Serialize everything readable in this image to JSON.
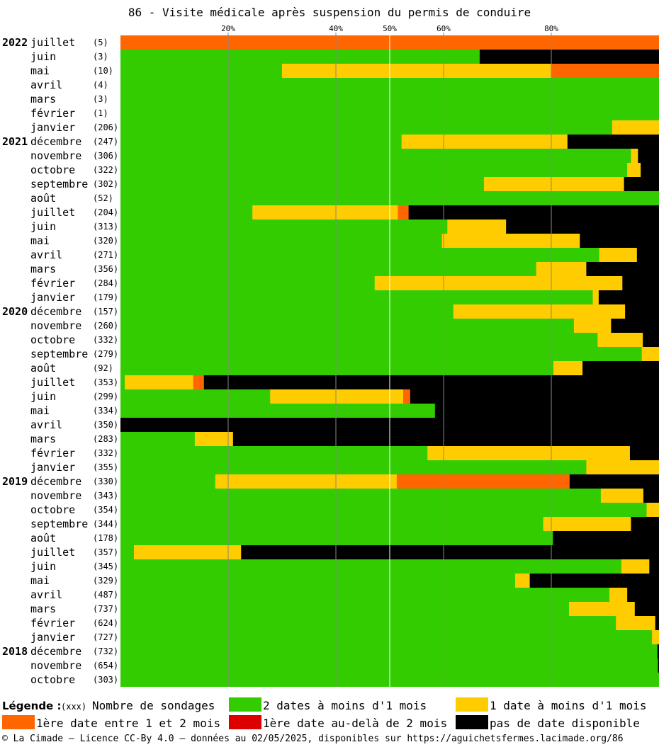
{
  "title": "86 - Visite médicale après suspension du permis de conduire",
  "colors": {
    "green": "#33cc00",
    "yellow": "#ffcc00",
    "orange": "#ff6600",
    "red": "#dd0000",
    "black": "#000000"
  },
  "legend": {
    "title": "Légende :",
    "count_hint": "(xxx)",
    "count_label": "Nombre de sondages",
    "items": [
      {
        "key": "green",
        "label": "2 dates à moins d'1 mois"
      },
      {
        "key": "yellow",
        "label": "1 date à moins d'1 mois"
      },
      {
        "key": "orange",
        "label": "1ère date entre 1 et 2 mois"
      },
      {
        "key": "red",
        "label": "1ère date au-delà de 2 mois"
      },
      {
        "key": "black",
        "label": "pas de date disponible"
      }
    ]
  },
  "footer": "© La Cimade – Licence CC-By 4.0 – données au 02/05/2025, disponibles sur https://aguichetsfermes.lacimade.org/86",
  "chart_data": {
    "type": "bar",
    "orientation": "horizontal-stacked-percent",
    "xlim": [
      0,
      100
    ],
    "ticks": [
      20,
      40,
      50,
      60,
      80
    ],
    "tick_labels": [
      "20%",
      "40%",
      "50%",
      "60%",
      "80%"
    ],
    "series_keys": [
      "green",
      "yellow",
      "orange",
      "red",
      "black"
    ],
    "rows": [
      {
        "year": "2022",
        "month": "juillet",
        "count": "(5)",
        "values": [
          0,
          0,
          100,
          0,
          0
        ]
      },
      {
        "year": "",
        "month": "juin",
        "count": "(3)",
        "values": [
          66.7,
          0,
          0,
          0,
          33.3
        ]
      },
      {
        "year": "",
        "month": "mai",
        "count": "(10)",
        "values": [
          30,
          50,
          20,
          0,
          0
        ]
      },
      {
        "year": "",
        "month": "avril",
        "count": "(4)",
        "values": [
          100,
          0,
          0,
          0,
          0
        ]
      },
      {
        "year": "",
        "month": "mars",
        "count": "(3)",
        "values": [
          100,
          0,
          0,
          0,
          0
        ]
      },
      {
        "year": "",
        "month": "février",
        "count": "(1)",
        "values": [
          100,
          0,
          0,
          0,
          0
        ]
      },
      {
        "year": "",
        "month": "janvier",
        "count": "(206)",
        "values": [
          91.3,
          8.7,
          0,
          0,
          0
        ]
      },
      {
        "year": "2021",
        "month": "décembre",
        "count": "(247)",
        "values": [
          52.2,
          30.8,
          0,
          0,
          17
        ]
      },
      {
        "year": "",
        "month": "novembre",
        "count": "(306)",
        "values": [
          94.8,
          1.3,
          0,
          0,
          3.9
        ]
      },
      {
        "year": "",
        "month": "octobre",
        "count": "(322)",
        "values": [
          94.1,
          2.5,
          0,
          0,
          3.4
        ]
      },
      {
        "year": "",
        "month": "septembre",
        "count": "(302)",
        "values": [
          67.5,
          26,
          0,
          0,
          6.5
        ]
      },
      {
        "year": "",
        "month": "août",
        "count": "(52)",
        "values": [
          100,
          0,
          0,
          0,
          0
        ]
      },
      {
        "year": "",
        "month": "juillet",
        "count": "(204)",
        "values": [
          24.5,
          27,
          2,
          0,
          46.5
        ]
      },
      {
        "year": "",
        "month": "juin",
        "count": "(313)",
        "values": [
          60.7,
          10.9,
          0,
          0,
          28.4
        ]
      },
      {
        "year": "",
        "month": "mai",
        "count": "(320)",
        "values": [
          59.7,
          25.6,
          0,
          0,
          14.7
        ]
      },
      {
        "year": "",
        "month": "avril",
        "count": "(271)",
        "values": [
          88.9,
          7,
          0,
          0,
          4.1
        ]
      },
      {
        "year": "",
        "month": "mars",
        "count": "(356)",
        "values": [
          77.2,
          9.3,
          0,
          0,
          13.5
        ]
      },
      {
        "year": "",
        "month": "février",
        "count": "(284)",
        "values": [
          47.2,
          46,
          0,
          0,
          6.8
        ]
      },
      {
        "year": "",
        "month": "janvier",
        "count": "(179)",
        "values": [
          87.7,
          1.1,
          0,
          0,
          11.2
        ]
      },
      {
        "year": "2020",
        "month": "décembre",
        "count": "(157)",
        "values": [
          61.8,
          31.9,
          0,
          0,
          6.3
        ]
      },
      {
        "year": "",
        "month": "novembre",
        "count": "(260)",
        "values": [
          84.2,
          6.9,
          0,
          0,
          8.9
        ]
      },
      {
        "year": "",
        "month": "octobre",
        "count": "(332)",
        "values": [
          88.6,
          8.4,
          0,
          0,
          3
        ]
      },
      {
        "year": "",
        "month": "septembre",
        "count": "(279)",
        "values": [
          96.8,
          3.2,
          0,
          0,
          0
        ]
      },
      {
        "year": "",
        "month": "août",
        "count": "(92)",
        "values": [
          80.4,
          5.4,
          0,
          0,
          14.2
        ]
      },
      {
        "year": "",
        "month": "juillet",
        "count": "(353)",
        "values": [
          0.8,
          12.7,
          2,
          0,
          84.5
        ]
      },
      {
        "year": "",
        "month": "juin",
        "count": "(299)",
        "values": [
          27.8,
          24.7,
          1.3,
          0,
          46.2
        ]
      },
      {
        "year": "",
        "month": "mai",
        "count": "(334)",
        "values": [
          58.4,
          0,
          0,
          0,
          41.6
        ]
      },
      {
        "year": "",
        "month": "avril",
        "count": "(350)",
        "values": [
          0,
          0,
          0,
          0,
          100
        ]
      },
      {
        "year": "",
        "month": "mars",
        "count": "(283)",
        "values": [
          13.8,
          7.1,
          0,
          0,
          79.1
        ]
      },
      {
        "year": "",
        "month": "février",
        "count": "(332)",
        "values": [
          57,
          37.6,
          0,
          0,
          5.4
        ]
      },
      {
        "year": "",
        "month": "janvier",
        "count": "(355)",
        "values": [
          86.5,
          13.5,
          0,
          0,
          0
        ]
      },
      {
        "year": "2019",
        "month": "décembre",
        "count": "(330)",
        "values": [
          17.6,
          33.7,
          32.1,
          0,
          16.6
        ]
      },
      {
        "year": "",
        "month": "novembre",
        "count": "(343)",
        "values": [
          89.2,
          7.9,
          0,
          0,
          2.9
        ]
      },
      {
        "year": "",
        "month": "octobre",
        "count": "(354)",
        "values": [
          97.7,
          2.3,
          0,
          0,
          0
        ]
      },
      {
        "year": "",
        "month": "septembre",
        "count": "(344)",
        "values": [
          78.5,
          16.3,
          0,
          0,
          5.2
        ]
      },
      {
        "year": "",
        "month": "août",
        "count": "(178)",
        "values": [
          80.3,
          0,
          0,
          0,
          19.7
        ]
      },
      {
        "year": "",
        "month": "juillet",
        "count": "(357)",
        "values": [
          2.5,
          19.9,
          0,
          0,
          77.6
        ]
      },
      {
        "year": "",
        "month": "juin",
        "count": "(345)",
        "values": [
          93,
          5.2,
          0,
          0,
          1.8
        ]
      },
      {
        "year": "",
        "month": "mai",
        "count": "(329)",
        "values": [
          73.3,
          2.7,
          0,
          0,
          24
        ]
      },
      {
        "year": "",
        "month": "avril",
        "count": "(487)",
        "values": [
          90.8,
          3.3,
          0,
          0,
          5.9
        ]
      },
      {
        "year": "",
        "month": "mars",
        "count": "(737)",
        "values": [
          83.3,
          12.2,
          0,
          0,
          4.5
        ]
      },
      {
        "year": "",
        "month": "février",
        "count": "(624)",
        "values": [
          92,
          7.3,
          0,
          0,
          0.7
        ]
      },
      {
        "year": "",
        "month": "janvier",
        "count": "(727)",
        "values": [
          98.7,
          1.3,
          0,
          0,
          0
        ]
      },
      {
        "year": "2018",
        "month": "décembre",
        "count": "(732)",
        "values": [
          99.7,
          0,
          0,
          0,
          0.3
        ]
      },
      {
        "year": "",
        "month": "novembre",
        "count": "(654)",
        "values": [
          99.8,
          0,
          0,
          0,
          0.2
        ]
      },
      {
        "year": "",
        "month": "octobre",
        "count": "(303)",
        "values": [
          100,
          0,
          0,
          0,
          0
        ]
      }
    ]
  }
}
